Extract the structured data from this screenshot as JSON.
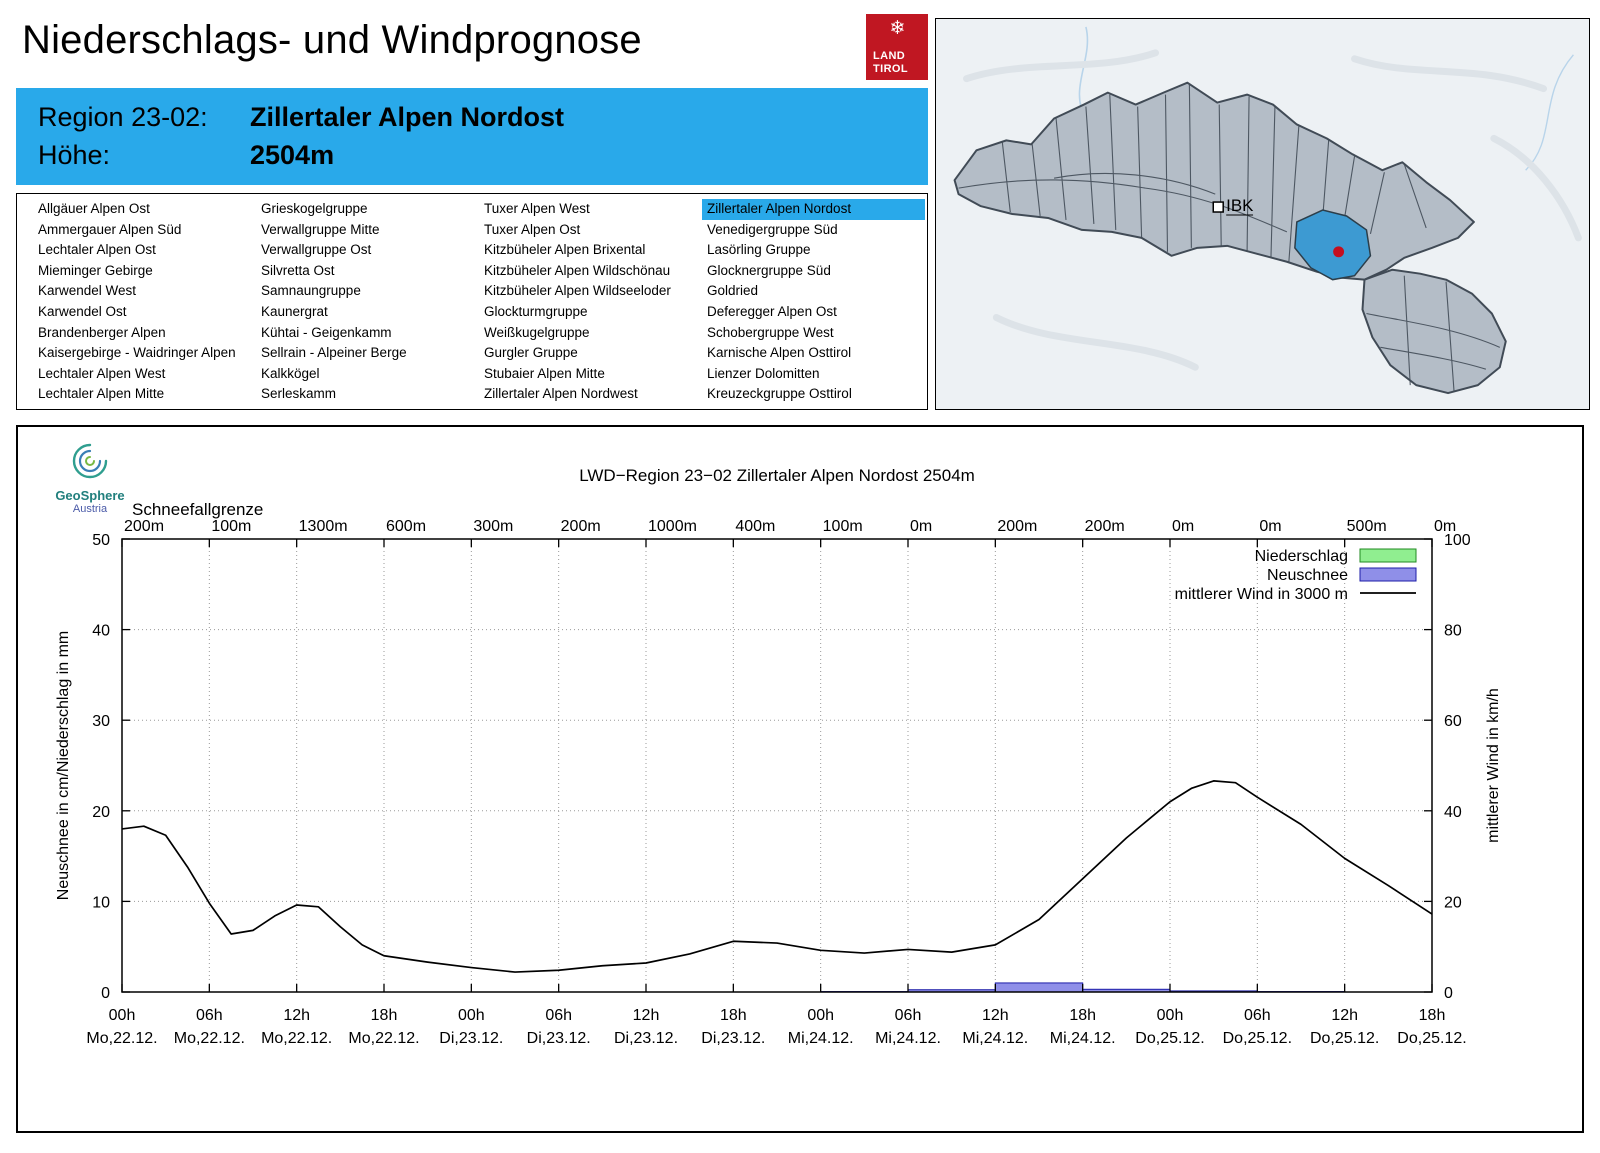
{
  "page": {
    "title": "Niederschlags- und Windprognose"
  },
  "tirol_logo": {
    "snowflake": "❄",
    "line1": "LAND",
    "line2": "TIROL",
    "bg": "#c01722"
  },
  "region_info": {
    "region_label": "Region 23-02:",
    "region_value": "Zillertaler Alpen Nordost",
    "height_label": "Höhe:",
    "height_value": "2504m",
    "bg": "#29a9ea"
  },
  "region_list": {
    "selected": "Zillertaler Alpen Nordost",
    "columns": [
      [
        "Allgäuer Alpen Ost",
        "Ammergauer Alpen Süd",
        "Lechtaler Alpen Ost",
        "Mieminger Gebirge",
        "Karwendel West",
        "Karwendel Ost",
        "Brandenberger Alpen",
        "Kaisergebirge - Waidringer Alpen",
        "Lechtaler Alpen West",
        "Lechtaler Alpen Mitte"
      ],
      [
        "Grieskogelgruppe",
        "Verwallgruppe Mitte",
        "Verwallgruppe Ost",
        "Silvretta Ost",
        "Samnaungruppe",
        "Kaunergrat",
        "Kühtai - Geigenkamm",
        "Sellrain - Alpeiner Berge",
        "Kalkkögel",
        "Serleskamm"
      ],
      [
        "Tuxer Alpen West",
        "Tuxer Alpen Ost",
        "Kitzbüheler Alpen Brixental",
        "Kitzbüheler Alpen Wildschönau",
        "Kitzbüheler Alpen Wildseeloder",
        "Glockturmgruppe",
        "Weißkugelgruppe",
        "Gurgler Gruppe",
        "Stubaier Alpen Mitte",
        "Zillertaler Alpen Nordwest"
      ],
      [
        "Zillertaler Alpen Nordost",
        "Venedigergruppe Süd",
        "Lasörling Gruppe",
        "Glocknergruppe Süd",
        "Goldried",
        "Deferegger Alpen Ost",
        "Schobergruppe West",
        "Karnische Alpen Osttirol",
        "Lienzer Dolomitten",
        "Kreuzeckgruppe Osttirol"
      ]
    ]
  },
  "map": {
    "ibk_label": "IBK",
    "selected_region_color": "#3d9ad2",
    "marker_color": "#c40f1f"
  },
  "geosphere": {
    "line1": "GeoSphere",
    "line2": "Austria"
  },
  "chart_data": {
    "type": "line+bar",
    "title": "LWD−Region 23−02 Zillertaler Alpen Nordost 2504m",
    "snowline_label": "Schneefallgrenze",
    "snowline_values": [
      "200m",
      "100m",
      "1300m",
      "600m",
      "300m",
      "200m",
      "1000m",
      "400m",
      "100m",
      "0m",
      "200m",
      "200m",
      "0m",
      "0m",
      "500m",
      "0m"
    ],
    "ylabel_left": "Neuschnee in cm/Niederschlag in mm",
    "ylabel_right": "mittlerer Wind in km/h",
    "ylim_left": [
      0,
      50
    ],
    "ylim_right": [
      0,
      100
    ],
    "yticks_left": [
      0,
      10,
      20,
      30,
      40,
      50
    ],
    "yticks_right": [
      0,
      20,
      40,
      60,
      80,
      100
    ],
    "x_hours_range": [
      0,
      90
    ],
    "xtick_hours": [
      0,
      6,
      12,
      18,
      24,
      30,
      36,
      42,
      48,
      54,
      60,
      66,
      72,
      78,
      84,
      90
    ],
    "xtick_labels": [
      "00h",
      "06h",
      "12h",
      "18h",
      "00h",
      "06h",
      "12h",
      "18h",
      "00h",
      "06h",
      "12h",
      "18h",
      "00h",
      "06h",
      "12h",
      "18h"
    ],
    "xtick_days": [
      "Mo,22.12.",
      "Mo,22.12.",
      "Mo,22.12.",
      "Mo,22.12.",
      "Di,23.12.",
      "Di,23.12.",
      "Di,23.12.",
      "Di,23.12.",
      "Mi,24.12.",
      "Mi,24.12.",
      "Mi,24.12.",
      "Mi,24.12.",
      "Do,25.12.",
      "Do,25.12.",
      "Do,25.12.",
      "Do,25.12."
    ],
    "legend": [
      {
        "label": "Niederschlag",
        "type": "box",
        "fill": "#90ee90",
        "stroke": "#228b22"
      },
      {
        "label": "Neuschnee",
        "type": "box",
        "fill": "#8f8fe8",
        "stroke": "#1c1ca8"
      },
      {
        "label": "mittlerer Wind in 3000 m",
        "type": "line",
        "stroke": "#000000"
      }
    ],
    "colors": {
      "niederschlag_fill": "#90ee90",
      "niederschlag_stroke": "#228b22",
      "neuschnee_fill": "#8f8fe8",
      "neuschnee_stroke": "#1c1ca8",
      "wind": "#000000",
      "grid": "#9a9a9a"
    },
    "wind_series": {
      "name": "mittlerer Wind in 3000 m",
      "unit": "km/h",
      "hours": [
        0,
        1.5,
        3,
        4.5,
        6,
        7.5,
        9,
        10.5,
        12,
        13.5,
        15,
        16.5,
        18,
        21,
        24,
        27,
        30,
        33,
        36,
        39,
        42,
        45,
        48,
        51,
        54,
        57,
        60,
        63,
        66,
        69,
        72,
        73.5,
        75,
        76.5,
        78,
        81,
        84,
        87,
        90
      ],
      "values_kmh": [
        36.0,
        36.6,
        34.6,
        27.6,
        19.6,
        12.8,
        13.6,
        16.8,
        19.2,
        18.8,
        14.4,
        10.4,
        8.0,
        6.6,
        5.4,
        4.4,
        4.8,
        5.8,
        6.4,
        8.4,
        11.2,
        10.8,
        9.2,
        8.6,
        9.4,
        8.8,
        10.4,
        16.0,
        25.0,
        34.0,
        42.0,
        45.0,
        46.6,
        46.2,
        43.0,
        37.0,
        29.5,
        23.5,
        17.2
      ]
    },
    "neuschnee_bars": {
      "name": "Neuschnee",
      "unit": "cm",
      "bars": [
        {
          "from": 48,
          "to": 54,
          "value": 0.05
        },
        {
          "from": 54,
          "to": 60,
          "value": 0.25
        },
        {
          "from": 60,
          "to": 66,
          "value": 1.0
        },
        {
          "from": 66,
          "to": 72,
          "value": 0.3
        },
        {
          "from": 72,
          "to": 78,
          "value": 0.12
        },
        {
          "from": 78,
          "to": 84,
          "value": 0.05
        }
      ]
    },
    "niederschlag_bars": {
      "name": "Niederschlag",
      "unit": "mm",
      "bars": []
    }
  }
}
